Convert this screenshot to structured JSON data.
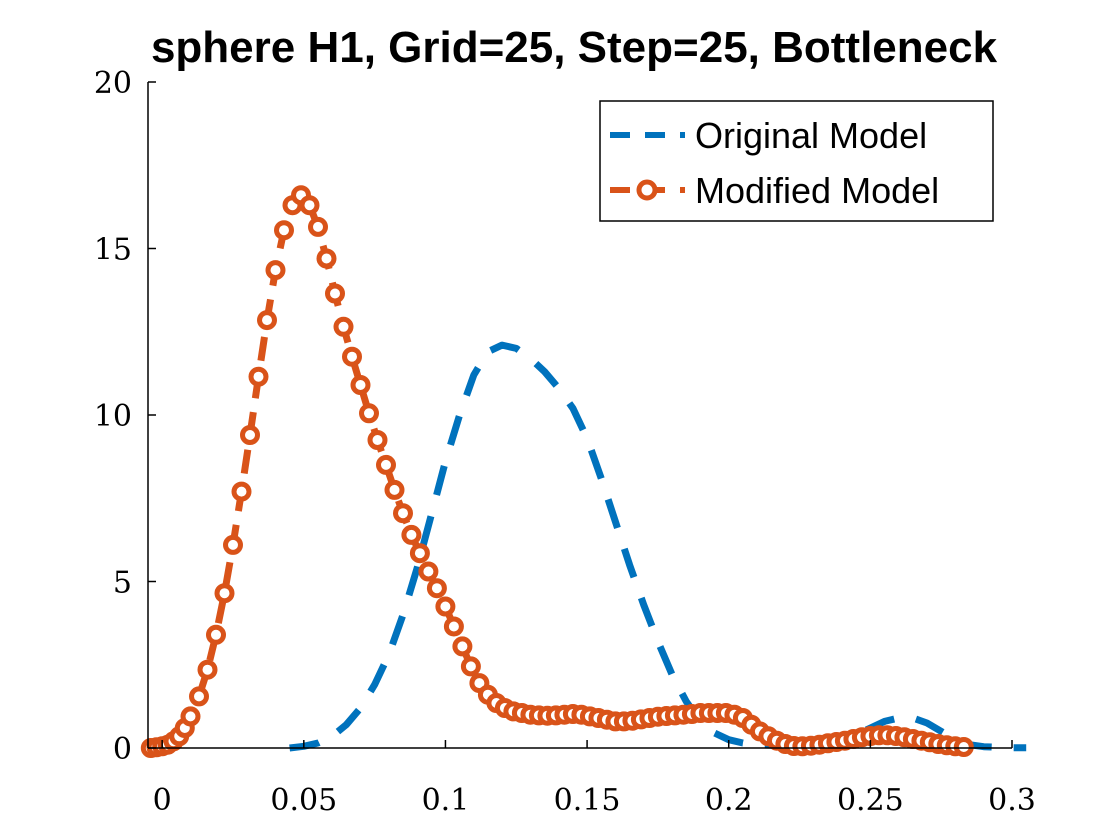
{
  "chart_data": {
    "type": "line",
    "title": "sphere H1, Grid=25, Step=25, Bottleneck",
    "xlabel": "",
    "ylabel": "",
    "xlim": [
      -0.005,
      0.3
    ],
    "ylim": [
      0,
      20
    ],
    "x_ticks": [
      0,
      0.05,
      0.1,
      0.15,
      0.2,
      0.25,
      0.3
    ],
    "x_tick_labels": [
      "0",
      "0.05",
      "0.1",
      "0.15",
      "0.2",
      "0.25",
      "0.3"
    ],
    "y_ticks": [
      0,
      5,
      10,
      15,
      20
    ],
    "y_tick_labels": [
      "0",
      "5",
      "10",
      "15",
      "20"
    ],
    "grid": false,
    "legend_position": "top-right",
    "series": [
      {
        "name": "Original Model",
        "color": "#0072BD",
        "style": "dashed",
        "marker": "none",
        "x": [
          0.045,
          0.05,
          0.055,
          0.06,
          0.065,
          0.07,
          0.075,
          0.08,
          0.085,
          0.09,
          0.095,
          0.1,
          0.105,
          0.11,
          0.115,
          0.12,
          0.125,
          0.13,
          0.135,
          0.14,
          0.145,
          0.15,
          0.155,
          0.16,
          0.165,
          0.17,
          0.175,
          0.18,
          0.185,
          0.19,
          0.195,
          0.2,
          0.205,
          0.21,
          0.215,
          0.22,
          0.225,
          0.23,
          0.235,
          0.24,
          0.245,
          0.25,
          0.255,
          0.26,
          0.265,
          0.27,
          0.275,
          0.28,
          0.285,
          0.29,
          0.295,
          0.3,
          0.305
        ],
        "y": [
          0,
          0.05,
          0.15,
          0.35,
          0.7,
          1.2,
          1.9,
          2.8,
          4.0,
          5.4,
          7.0,
          8.6,
          10.0,
          11.2,
          11.9,
          12.1,
          12.0,
          11.7,
          11.3,
          10.8,
          10.2,
          9.3,
          8.1,
          6.8,
          5.5,
          4.3,
          3.2,
          2.2,
          1.4,
          0.8,
          0.45,
          0.25,
          0.15,
          0.1,
          0.08,
          0.07,
          0.08,
          0.1,
          0.15,
          0.25,
          0.4,
          0.6,
          0.8,
          0.9,
          0.9,
          0.75,
          0.5,
          0.25,
          0.1,
          0.04,
          0.02,
          0.01,
          0.01
        ]
      },
      {
        "name": "Modified Model",
        "color": "#D95319",
        "style": "dashed",
        "marker": "circle",
        "x": [
          -0.004,
          -0.002,
          0.0,
          0.002,
          0.004,
          0.006,
          0.008,
          0.01,
          0.013,
          0.016,
          0.019,
          0.022,
          0.025,
          0.028,
          0.031,
          0.034,
          0.037,
          0.04,
          0.043,
          0.046,
          0.049,
          0.052,
          0.055,
          0.058,
          0.061,
          0.064,
          0.067,
          0.07,
          0.073,
          0.076,
          0.079,
          0.082,
          0.085,
          0.088,
          0.091,
          0.094,
          0.097,
          0.1,
          0.103,
          0.106,
          0.109,
          0.112,
          0.115,
          0.118,
          0.121,
          0.124,
          0.127,
          0.13,
          0.133,
          0.136,
          0.139,
          0.142,
          0.145,
          0.148,
          0.151,
          0.154,
          0.157,
          0.16,
          0.163,
          0.166,
          0.169,
          0.172,
          0.175,
          0.178,
          0.181,
          0.184,
          0.187,
          0.19,
          0.193,
          0.196,
          0.199,
          0.202,
          0.205,
          0.208,
          0.211,
          0.214,
          0.217,
          0.22,
          0.223,
          0.226,
          0.229,
          0.232,
          0.235,
          0.238,
          0.241,
          0.244,
          0.247,
          0.25,
          0.253,
          0.256,
          0.259,
          0.262,
          0.265,
          0.268,
          0.271,
          0.274,
          0.277,
          0.28,
          0.283
        ],
        "y": [
          0.0,
          0.02,
          0.05,
          0.1,
          0.2,
          0.35,
          0.6,
          0.95,
          1.55,
          2.35,
          3.4,
          4.65,
          6.1,
          7.7,
          9.4,
          11.15,
          12.85,
          14.35,
          15.55,
          16.3,
          16.6,
          16.3,
          15.65,
          14.7,
          13.65,
          12.65,
          11.75,
          10.9,
          10.05,
          9.25,
          8.5,
          7.75,
          7.05,
          6.4,
          5.85,
          5.3,
          4.8,
          4.25,
          3.65,
          3.05,
          2.45,
          1.95,
          1.6,
          1.35,
          1.2,
          1.1,
          1.05,
          1.0,
          0.98,
          0.97,
          0.98,
          1.0,
          1.02,
          1.0,
          0.95,
          0.9,
          0.85,
          0.8,
          0.8,
          0.82,
          0.86,
          0.9,
          0.94,
          0.96,
          0.98,
          1.0,
          1.02,
          1.05,
          1.05,
          1.05,
          1.05,
          1.0,
          0.9,
          0.7,
          0.5,
          0.35,
          0.22,
          0.12,
          0.06,
          0.05,
          0.07,
          0.1,
          0.14,
          0.18,
          0.22,
          0.27,
          0.32,
          0.36,
          0.38,
          0.38,
          0.36,
          0.32,
          0.27,
          0.22,
          0.17,
          0.12,
          0.08,
          0.05,
          0.03
        ]
      }
    ]
  }
}
